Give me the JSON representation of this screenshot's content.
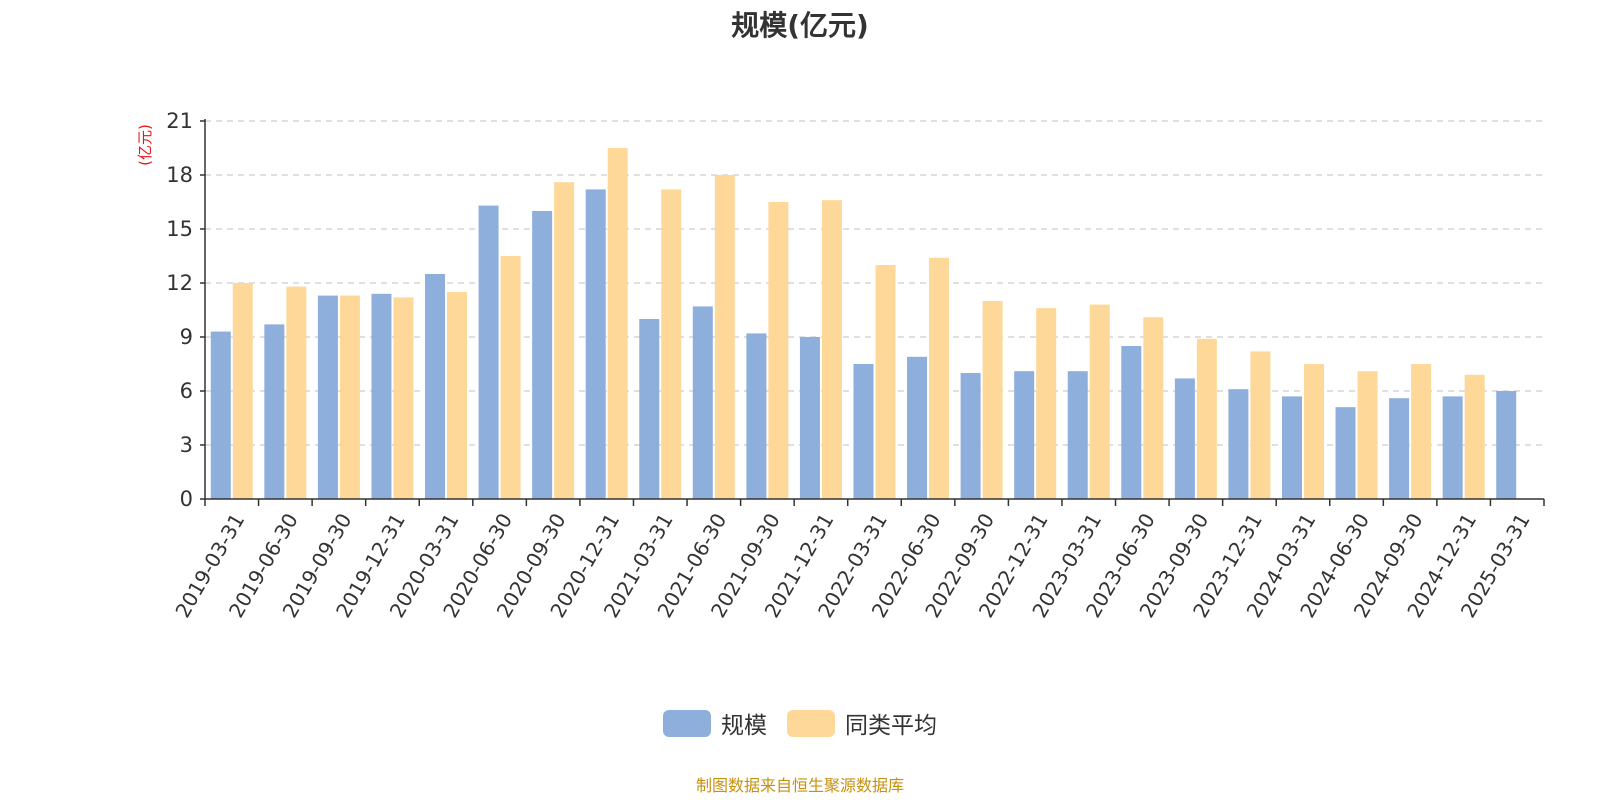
{
  "colors": {
    "series_1": "#8eaedb",
    "series_2": "#fdd899",
    "unit_label": "#e8161a",
    "source_note": "#c8900f",
    "axis": "#333333",
    "grid": "#cccccc"
  },
  "chart_data": {
    "type": "bar",
    "title": "规模(亿元)",
    "ylabel": "(亿元)",
    "xlabel": "",
    "ylim": [
      0,
      21
    ],
    "yticks": [
      0,
      3,
      6,
      9,
      12,
      15,
      18,
      21
    ],
    "grid": true,
    "legend_position": "bottom-center",
    "categories": [
      "2019-03-31",
      "2019-06-30",
      "2019-09-30",
      "2019-12-31",
      "2020-03-31",
      "2020-06-30",
      "2020-09-30",
      "2020-12-31",
      "2021-03-31",
      "2021-06-30",
      "2021-09-30",
      "2021-12-31",
      "2022-03-31",
      "2022-06-30",
      "2022-09-30",
      "2022-12-31",
      "2023-03-31",
      "2023-06-30",
      "2023-09-30",
      "2023-12-31",
      "2024-03-31",
      "2024-06-30",
      "2024-09-30",
      "2024-12-31",
      "2025-03-31"
    ],
    "series": [
      {
        "name": "规模",
        "values": [
          9.3,
          9.7,
          11.3,
          11.4,
          12.5,
          16.3,
          16.0,
          17.2,
          10.0,
          10.7,
          9.2,
          9.0,
          7.5,
          7.9,
          7.0,
          7.1,
          7.1,
          8.5,
          6.7,
          6.1,
          5.7,
          5.1,
          5.6,
          5.7,
          6.0
        ]
      },
      {
        "name": "同类平均",
        "values": [
          12.0,
          11.8,
          11.3,
          11.2,
          11.5,
          13.5,
          17.6,
          19.5,
          17.2,
          18.0,
          16.5,
          16.6,
          13.0,
          13.4,
          11.0,
          10.6,
          10.8,
          10.1,
          8.9,
          8.2,
          7.5,
          7.1,
          7.5,
          6.9,
          null
        ]
      }
    ]
  },
  "source_note": "制图数据来自恒生聚源数据库"
}
